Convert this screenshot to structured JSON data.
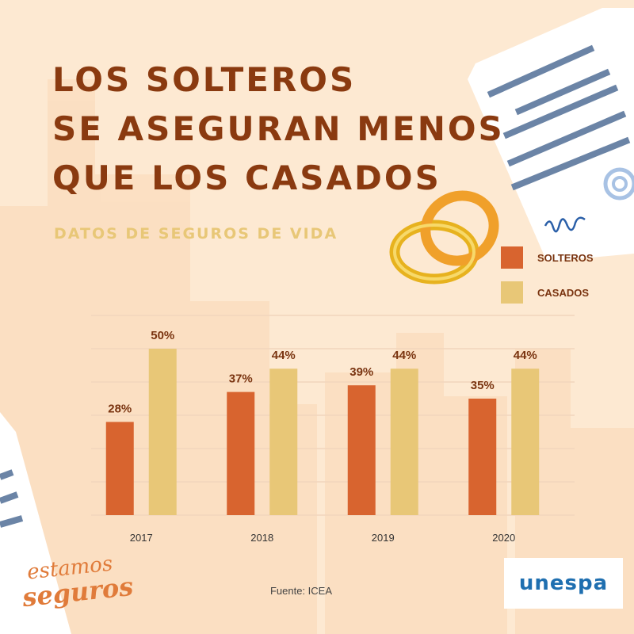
{
  "header": {
    "title_lines": [
      "LOS SOLTEROS",
      "SE ASEGURAN MENOS",
      "QUE LOS CASADOS"
    ],
    "subtitle": "DATOS DE SEGUROS DE VIDA"
  },
  "colors": {
    "background": "#fde9d2",
    "solteros": "#d8642f",
    "casados": "#e8c777",
    "title": "#8a3a10",
    "value_label": "#7a3410"
  },
  "chart_data": {
    "type": "bar",
    "categories": [
      "2017",
      "2018",
      "2019",
      "2020"
    ],
    "series": [
      {
        "name": "SOLTEROS",
        "values": [
          28,
          37,
          39,
          35
        ],
        "labels": [
          "28%",
          "37%",
          "39%",
          "35%"
        ]
      },
      {
        "name": "CASADOS",
        "values": [
          50,
          44,
          44,
          44
        ],
        "labels": [
          "50%",
          "44%",
          "44%",
          "44%"
        ]
      }
    ],
    "ylim": [
      0,
      60
    ],
    "grid": true,
    "legend_position": "top-right"
  },
  "footer": {
    "source": "Fuente: ICEA",
    "brand_left_line1": "estamos",
    "brand_left_line2": "seguros",
    "brand_right": "unespa"
  }
}
